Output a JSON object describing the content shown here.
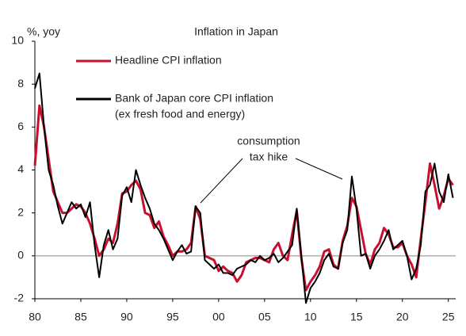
{
  "chart_data": {
    "type": "line",
    "title": "Inflation in Japan",
    "y_label": "%, yoy",
    "annotation": [
      "consumption",
      "tax hike"
    ],
    "xlim": [
      1980,
      2025.8
    ],
    "ylim": [
      -2,
      10
    ],
    "yticks": [
      -2,
      0,
      2,
      4,
      6,
      8,
      10
    ],
    "xticks": [
      {
        "value": 1980,
        "label": "80"
      },
      {
        "value": 1985,
        "label": "85"
      },
      {
        "value": 1990,
        "label": "90"
      },
      {
        "value": 1995,
        "label": "95"
      },
      {
        "value": 2000,
        "label": "00"
      },
      {
        "value": 2005,
        "label": "05"
      },
      {
        "value": 2010,
        "label": "10"
      },
      {
        "value": 2015,
        "label": "15"
      },
      {
        "value": 2020,
        "label": "20"
      },
      {
        "value": 2025,
        "label": "25"
      }
    ],
    "x": [
      1980,
      1980.5,
      1981,
      1981.5,
      1982,
      1982.5,
      1983,
      1983.5,
      1984,
      1984.5,
      1985,
      1985.5,
      1986,
      1986.5,
      1987,
      1987.5,
      1988,
      1988.5,
      1989,
      1989.5,
      1990,
      1990.5,
      1991,
      1991.5,
      1992,
      1992.5,
      1993,
      1993.5,
      1994,
      1994.5,
      1995,
      1995.5,
      1996,
      1996.5,
      1997,
      1997.5,
      1998,
      1998.5,
      1999,
      1999.5,
      2000,
      2000.5,
      2001,
      2001.5,
      2002,
      2002.5,
      2003,
      2003.5,
      2004,
      2004.5,
      2005,
      2005.5,
      2006,
      2006.5,
      2007,
      2007.5,
      2008,
      2008.5,
      2009,
      2009.5,
      2010,
      2010.5,
      2011,
      2011.5,
      2012,
      2012.5,
      2013,
      2013.5,
      2014,
      2014.5,
      2015,
      2015.5,
      2016,
      2016.5,
      2017,
      2017.5,
      2018,
      2018.5,
      2019,
      2019.5,
      2020,
      2020.5,
      2021,
      2021.5,
      2022,
      2022.5,
      2023,
      2023.5,
      2024,
      2024.5,
      2025,
      2025.5
    ],
    "series": [
      {
        "name": "Headline CPI inflation",
        "color": "#c8102e",
        "width": 3,
        "values": [
          4.2,
          7.0,
          6.0,
          4.5,
          3.0,
          2.5,
          2.0,
          2.0,
          2.2,
          2.4,
          2.3,
          2.0,
          1.5,
          0.8,
          0.0,
          0.3,
          0.8,
          0.6,
          1.5,
          2.9,
          3.0,
          3.3,
          3.5,
          3.1,
          2.0,
          1.9,
          1.3,
          1.6,
          0.9,
          0.5,
          0.0,
          0.2,
          0.2,
          0.3,
          0.6,
          2.3,
          1.7,
          0.0,
          -0.1,
          -0.2,
          -0.7,
          -0.5,
          -0.7,
          -0.8,
          -1.2,
          -0.9,
          -0.3,
          -0.2,
          -0.1,
          -0.1,
          -0.2,
          -0.3,
          0.3,
          0.6,
          0.0,
          -0.2,
          1.0,
          2.1,
          -0.1,
          -1.6,
          -1.2,
          -0.9,
          -0.5,
          0.2,
          0.3,
          -0.4,
          -0.6,
          0.7,
          1.4,
          2.7,
          2.3,
          1.2,
          0.1,
          -0.4,
          0.3,
          0.6,
          1.3,
          1.0,
          0.4,
          0.4,
          0.6,
          0.0,
          -0.4,
          -1.0,
          0.8,
          2.5,
          4.3,
          3.3,
          2.2,
          2.8,
          3.6,
          3.3
        ]
      },
      {
        "name": "Bank of Japan core CPI inflation",
        "note": "(ex fresh food and energy)",
        "color": "#000000",
        "width": 2,
        "values": [
          7.8,
          8.5,
          6.0,
          4.0,
          3.3,
          2.3,
          1.5,
          2.0,
          2.5,
          2.2,
          2.4,
          1.8,
          2.5,
          0.5,
          -1.0,
          0.5,
          1.2,
          0.3,
          0.8,
          2.8,
          3.2,
          2.5,
          4.0,
          3.3,
          2.7,
          2.2,
          1.5,
          1.2,
          0.8,
          0.3,
          -0.2,
          0.2,
          0.5,
          0.1,
          0.2,
          2.3,
          2.0,
          -0.2,
          -0.4,
          -0.6,
          -0.4,
          -0.8,
          -0.8,
          -0.9,
          -0.6,
          -0.5,
          -0.4,
          -0.2,
          -0.3,
          0.0,
          -0.2,
          -0.1,
          0.1,
          -0.3,
          -0.1,
          0.2,
          0.5,
          2.2,
          0.0,
          -2.2,
          -1.5,
          -1.2,
          -0.8,
          -0.2,
          0.1,
          -0.5,
          -0.6,
          0.6,
          1.2,
          3.7,
          2.2,
          0.0,
          0.1,
          -0.6,
          0.0,
          0.3,
          0.7,
          1.2,
          0.3,
          0.5,
          0.7,
          0.0,
          -1.1,
          -0.6,
          0.5,
          3.0,
          3.3,
          4.3,
          3.0,
          2.5,
          3.8,
          2.7
        ]
      }
    ]
  }
}
